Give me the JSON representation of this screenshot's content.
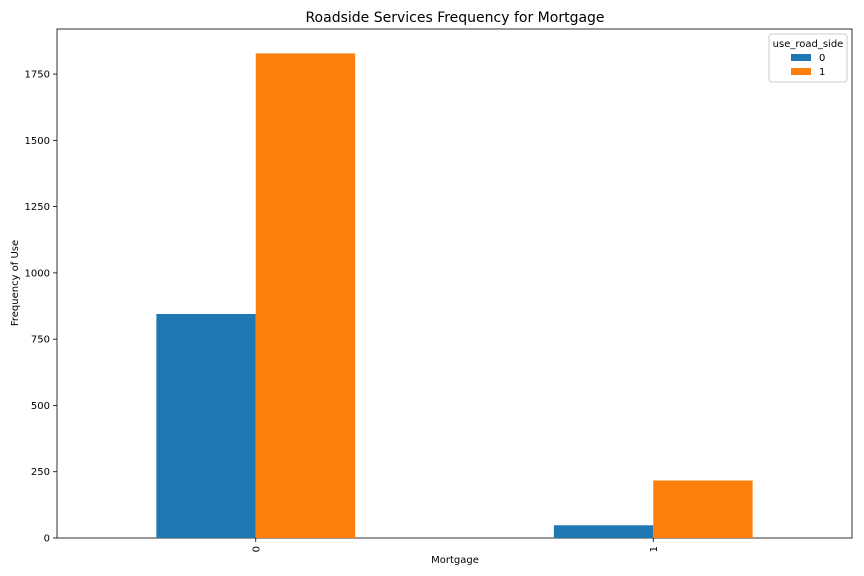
{
  "chart_data": {
    "type": "bar",
    "title": "Roadside Services Frequency for Mortgage",
    "xlabel": "Mortgage",
    "ylabel": "Frequency of Use",
    "categories": [
      "0",
      "1"
    ],
    "series": [
      {
        "name": "0",
        "values": [
          845,
          48
        ],
        "color": "#1f77b4"
      },
      {
        "name": "1",
        "values": [
          1828,
          217
        ],
        "color": "#ff7f0e"
      }
    ],
    "ylim": [
      0,
      1920
    ],
    "yticks": [
      0,
      250,
      500,
      750,
      1000,
      1250,
      1500,
      1750
    ],
    "grid": false,
    "legend": {
      "title": "use_road_side",
      "placement": "top-right"
    }
  }
}
